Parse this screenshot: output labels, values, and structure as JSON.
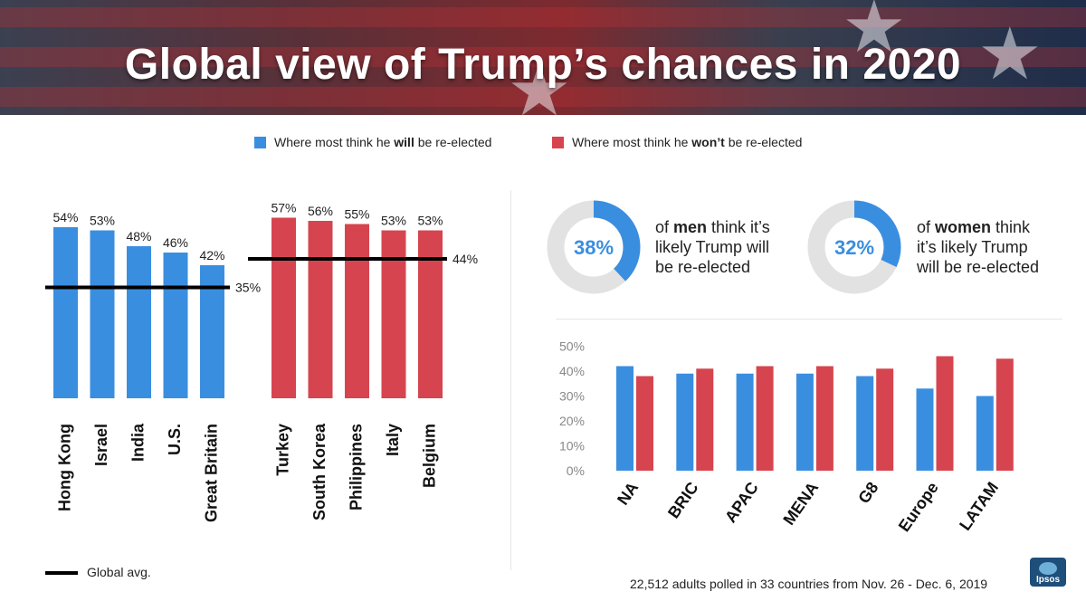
{
  "header": {
    "title": "Global view of Trump’s chances in 2020"
  },
  "legend": {
    "will": {
      "prefix": "Where most think he ",
      "strong": "will",
      "suffix": " be re-elected"
    },
    "wont": {
      "prefix": "Where most think he ",
      "strong": "won’t",
      "suffix": " be re-elected"
    }
  },
  "colors": {
    "blue": "#3a8ee0",
    "red": "#d6454f",
    "donut_track": "#e2e2e2",
    "avg_line": "#000000"
  },
  "gender": {
    "men": {
      "pct_label": "38%",
      "value": 38,
      "l1_strong": "men",
      "l1_rest": " think it’s",
      "l2": "likely Trump will",
      "l3": "be re-elected",
      "l1_prefix": "of "
    },
    "women": {
      "pct_label": "32%",
      "value": 32,
      "l1_strong": "women",
      "l1_rest": " think",
      "l2": "it’s likely Trump",
      "l3": "will be re-elected",
      "l1_prefix": "of "
    }
  },
  "notes": {
    "global_avg": "Global avg.",
    "footnote": "22,512 adults polled in 33 countries from Nov. 26 - Dec. 6, 2019",
    "logo_text": "Ipsos"
  },
  "chart_data": [
    {
      "type": "bar",
      "categories": [
        "Hong Kong",
        "Israel",
        "India",
        "U.S.",
        "Great Britain"
      ],
      "values": [
        54,
        53,
        48,
        46,
        42
      ],
      "data_labels": [
        "54%",
        "53%",
        "48%",
        "46%",
        "42%"
      ],
      "reference_line": {
        "value": 35,
        "label": "35%"
      },
      "color": "#3a8ee0",
      "ylim": [
        0,
        60
      ]
    },
    {
      "type": "bar",
      "categories": [
        "Turkey",
        "South Korea",
        "Philippines",
        "Italy",
        "Belgium"
      ],
      "values": [
        57,
        56,
        55,
        53,
        53
      ],
      "data_labels": [
        "57%",
        "56%",
        "55%",
        "53%",
        "53%"
      ],
      "reference_line": {
        "value": 44,
        "label": "44%"
      },
      "color": "#d6454f",
      "ylim": [
        0,
        60
      ]
    },
    {
      "type": "bar",
      "categories": [
        "NA",
        "BRIC",
        "APAC",
        "MENA",
        "G8",
        "Europe",
        "LATAM"
      ],
      "series": [
        {
          "values": [
            42,
            39,
            39,
            39,
            38,
            33,
            30
          ],
          "color": "#3a8ee0"
        },
        {
          "values": [
            38,
            41,
            42,
            42,
            41,
            46,
            45
          ],
          "color": "#d6454f"
        }
      ],
      "yticks": [
        "0%",
        "10%",
        "20%",
        "30%",
        "40%",
        "50%"
      ],
      "ylim": [
        0,
        50
      ],
      "grid": false
    }
  ]
}
